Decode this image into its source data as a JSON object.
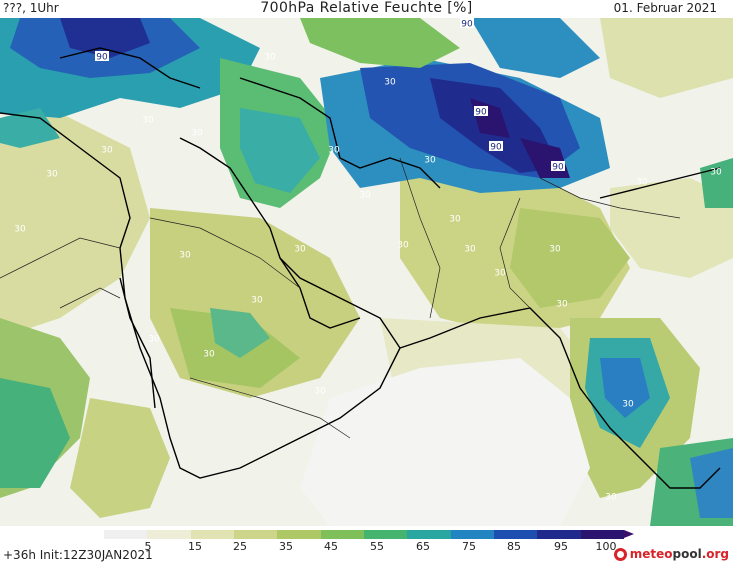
{
  "header": {
    "left": "???, 1Uhr",
    "title": "700hPa Relative Feuchte [%]",
    "date": "01. Februar 2021"
  },
  "footer": {
    "run": "+36h  Init:12Z30JAN2021",
    "logo_part1": "meteo",
    "logo_part2": "pool",
    "logo_part3": ".org"
  },
  "legend": {
    "ticks": [
      "5",
      "15",
      "25",
      "35",
      "45",
      "55",
      "65",
      "75",
      "85",
      "95",
      "100"
    ],
    "colors": [
      "#f0f0f0",
      "#eeeed8",
      "#e1e3b2",
      "#cdd58a",
      "#adc865",
      "#7fc05a",
      "#44b46e",
      "#2aa6a0",
      "#2384c2",
      "#1d4fb0",
      "#1f2a8c",
      "#2a1470",
      "#3a0f6a"
    ]
  },
  "map": {
    "contour_labels": [
      "30",
      "30",
      "30",
      "30",
      "30",
      "30",
      "30",
      "30",
      "30",
      "30",
      "30",
      "30",
      "30",
      "30",
      "30",
      "30",
      "30",
      "30",
      "30",
      "30",
      "30",
      "30",
      "30",
      "30",
      "30",
      "30",
      "90",
      "90",
      "90",
      "90",
      "90"
    ]
  }
}
